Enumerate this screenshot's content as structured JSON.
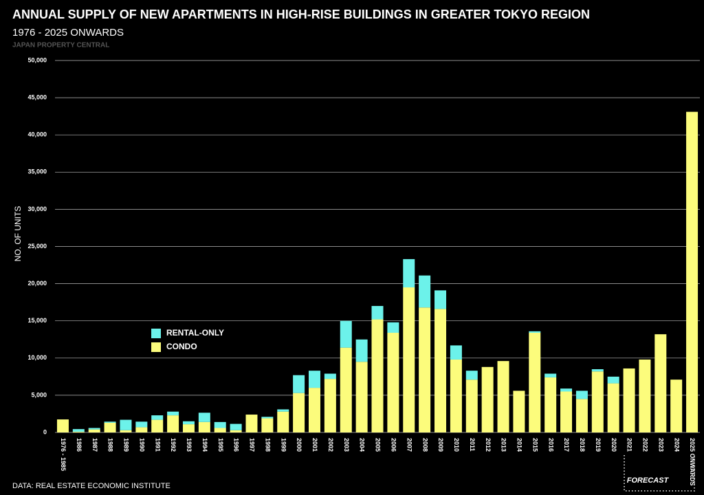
{
  "chart_data": {
    "type": "stacked_bar",
    "title": "ANNUAL SUPPLY OF NEW APARTMENTS IN HIGH-RISE BUILDINGS IN GREATER TOKYO REGION",
    "subtitle": "1976 - 2025 ONWARDS",
    "source_label": "JAPAN PROPERTY CENTRAL",
    "y_label": "NO. OF UNITS",
    "footer": "DATA: REAL ESTATE ECONOMIC INSTITUTE",
    "annotation": "FORECAST",
    "categories": [
      "1976 - 1985",
      "1986",
      "1987",
      "1988",
      "1989",
      "1990",
      "1991",
      "1992",
      "1993",
      "1994",
      "1995",
      "1996",
      "1997",
      "1998",
      "1999",
      "2000",
      "2001",
      "2002",
      "2003",
      "2004",
      "2005",
      "2006",
      "2007",
      "2008",
      "2009",
      "2010",
      "2011",
      "2012",
      "2013",
      "2014",
      "2015",
      "2016",
      "2017",
      "2018",
      "2019",
      "2020",
      "2021",
      "2022",
      "2023",
      "2024",
      "2025 ONWARDS"
    ],
    "series": [
      {
        "name": "CONDO",
        "color": "#fcfc7c",
        "values": [
          1750,
          100,
          400,
          1300,
          300,
          700,
          1700,
          2300,
          1100,
          1400,
          600,
          300,
          2400,
          1900,
          2800,
          5300,
          6000,
          7200,
          11400,
          9500,
          15200,
          13400,
          19500,
          16800,
          16600,
          9800,
          7100,
          8800,
          9600,
          5600,
          13400,
          7400,
          5500,
          4500,
          8200,
          6600,
          8600,
          9800,
          13200,
          7100,
          43100
        ]
      },
      {
        "name": "RENTAL-ONLY",
        "color": "#6cf2ea",
        "values": [
          0,
          350,
          200,
          150,
          1400,
          750,
          600,
          500,
          400,
          1250,
          800,
          850,
          0,
          200,
          300,
          2400,
          2300,
          700,
          3600,
          3000,
          1800,
          1400,
          3800,
          4300,
          2500,
          1900,
          1200,
          0,
          0,
          0,
          200,
          500,
          400,
          1100,
          300,
          900,
          0,
          0,
          0,
          0,
          0
        ]
      }
    ],
    "ylim": [
      0,
      50000
    ],
    "yticks": [
      0,
      {
        "value": 5000,
        "label": "5,000"
      },
      {
        "value": 10000,
        "label": "10,000"
      },
      {
        "value": 15000,
        "label": "15,000"
      },
      {
        "value": 20000,
        "label": "20,000"
      },
      {
        "value": 25000,
        "label": "25,000"
      },
      {
        "value": 30000,
        "label": "30,000"
      },
      {
        "value": 35000,
        "label": "35,000"
      },
      {
        "value": 40000,
        "label": "40,000"
      },
      {
        "value": 45000,
        "label": "45,000"
      },
      {
        "value": 50000,
        "label": "50,000"
      }
    ],
    "grid": true
  }
}
